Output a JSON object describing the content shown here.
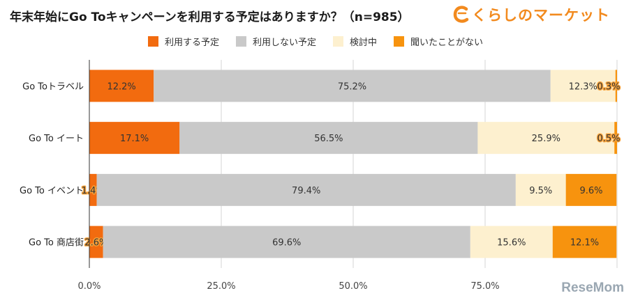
{
  "title": "年末年始にGo Toキャンペーンを利用する予定はありますか？（n=985）",
  "brand": "くらしのマーケット",
  "watermark": "ReseMom",
  "chart_data": {
    "type": "bar",
    "orientation": "horizontal",
    "stacked": true,
    "categories": [
      "Go Toトラベル",
      "Go To イート",
      "Go To イベント",
      "Go To 商店街"
    ],
    "series": [
      {
        "name": "利用する予定",
        "color": "#f26b0f",
        "values": [
          12.2,
          17.1,
          1.4,
          2.6
        ]
      },
      {
        "name": "利用しない予定",
        "color": "#c9c9c9",
        "values": [
          75.2,
          56.5,
          79.4,
          69.6
        ]
      },
      {
        "name": "検討中",
        "color": "#fdf0cf",
        "values": [
          12.3,
          25.9,
          9.5,
          15.6
        ]
      },
      {
        "name": "聞いたことがない",
        "color": "#f7930e",
        "values": [
          0.3,
          0.5,
          9.6,
          12.1
        ]
      }
    ],
    "labels": [
      [
        "12.2%",
        "75.2%",
        "12.3%",
        "0.3%"
      ],
      [
        "17.1%",
        "56.5%",
        "25.9%",
        "0.5%"
      ],
      [
        "1.4%",
        "79.4%",
        "9.5%",
        "9.6%"
      ],
      [
        "2.6%",
        "69.6%",
        "15.6%",
        "12.1%"
      ]
    ],
    "xlim": [
      0,
      100
    ],
    "xticks": [
      0,
      25,
      50,
      75,
      100
    ],
    "xtick_labels": [
      "0.0%",
      "25.0%",
      "50.0%",
      "75.0%",
      ""
    ],
    "grid": true,
    "legend_position": "top"
  }
}
